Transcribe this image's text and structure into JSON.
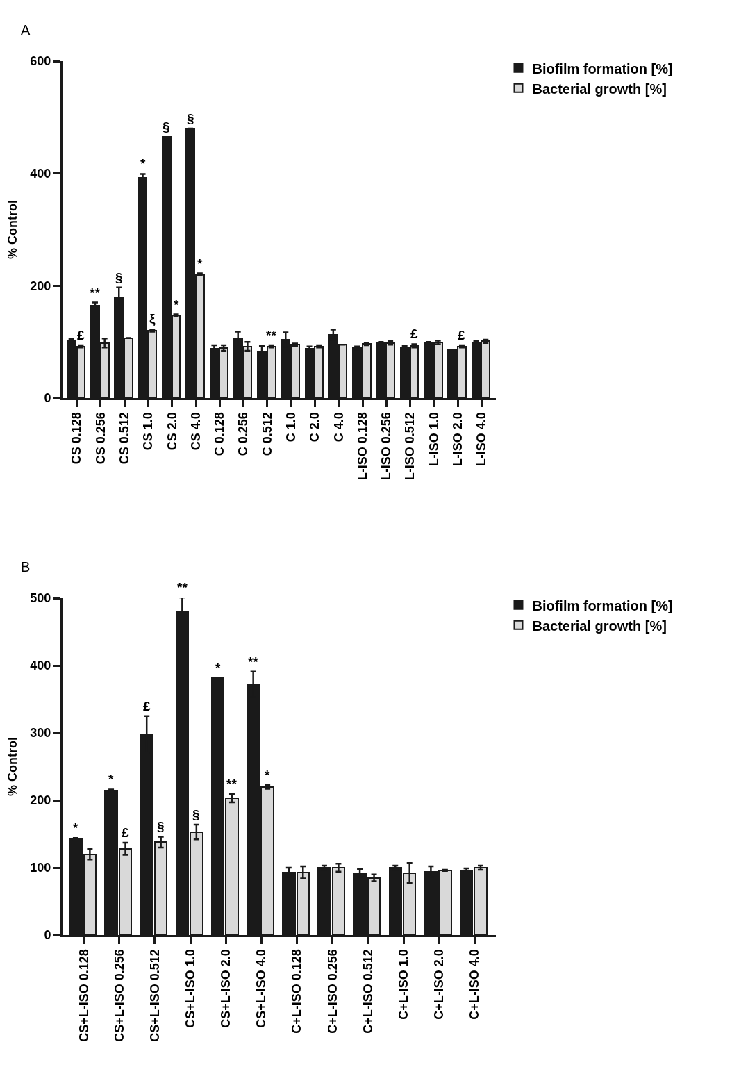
{
  "chart_data": [
    {
      "type": "bar",
      "title": "A",
      "ylabel": "% Control",
      "legend": "top right",
      "grid": false,
      "categories": [
        "CS 0.128",
        "CS 0.256",
        "CS 0.512",
        "CS 1.0",
        "CS 2.0",
        "CS 4.0",
        "C 0.128",
        "C 0.256",
        "C 0.512",
        "C 1.0",
        "C 2.0",
        "C 4.0",
        "L-ISO 0.128",
        "L-ISO 0.256",
        "L-ISO 0.512",
        "L-ISO 1.0",
        "L-ISO 2.0",
        "L-ISO 4.0"
      ],
      "series": [
        {
          "name": "Biofilm formation [%]",
          "color": "#1a1a1a",
          "values": [
            103,
            165,
            180,
            392,
            465,
            480,
            88,
            105,
            83,
            104,
            88,
            113,
            89,
            98,
            90,
            98,
            85,
            98
          ],
          "errors": [
            2,
            5,
            17,
            7,
            null,
            null,
            6,
            13,
            10,
            13,
            4,
            9,
            3,
            2,
            3,
            2,
            null,
            3
          ]
        },
        {
          "name": "Bacterial growth [%]",
          "color": "#d9d9d9",
          "values": [
            92,
            98,
            107,
            120,
            147,
            220,
            89,
            92,
            92,
            95,
            92,
            95,
            96,
            98,
            93,
            99,
            92,
            101
          ],
          "errors": [
            2,
            8,
            null,
            2,
            2,
            2,
            5,
            8,
            2,
            2,
            2,
            null,
            2,
            3,
            3,
            3,
            2,
            3
          ]
        }
      ],
      "ylim": [
        0,
        600
      ],
      "yticks": [
        0,
        200,
        400,
        600
      ],
      "annotations": [
        {
          "text": "£",
          "x": "CS 0.128",
          "y": 92
        },
        {
          "text": "**",
          "x": "CS 0.256",
          "y": 165
        },
        {
          "text": "§",
          "x": "CS 0.512",
          "y": 180
        },
        {
          "text": "*",
          "x": "CS 1.0",
          "y": 392
        },
        {
          "text": "ξ",
          "x": "CS 1.0",
          "y": 120
        },
        {
          "text": "§",
          "x": "CS 2.0",
          "y": 465
        },
        {
          "text": "*",
          "x": "CS 2.0",
          "y": 147
        },
        {
          "text": "§",
          "x": "CS 4.0",
          "y": 480
        },
        {
          "text": "*",
          "x": "CS 4.0",
          "y": 220
        },
        {
          "text": "**",
          "x": "C 0.512",
          "y": 92
        },
        {
          "text": "£",
          "x": "L-ISO 0.512",
          "y": 93
        },
        {
          "text": "£",
          "x": "L-ISO 2.0",
          "y": 92
        }
      ]
    },
    {
      "type": "bar",
      "title": "B",
      "ylabel": "% Control",
      "legend": "top right",
      "grid": false,
      "categories": [
        "CS+L-ISO 0.128",
        "CS+L-ISO 0.256",
        "CS+L-ISO 0.512",
        "CS+L-ISO 1.0",
        "CS+L-ISO 2.0",
        "CS+L-ISO 4.0",
        "C+L-ISO 0.128",
        "C+L-ISO 0.256",
        "C+L-ISO 0.512",
        "C+L-ISO 1.0",
        "C+L-ISO 2.0",
        "C+L-ISO 4.0"
      ],
      "series": [
        {
          "name": "Biofilm formation [%]",
          "color": "#1a1a1a",
          "values": [
            143,
            214,
            298,
            479,
            381,
            372,
            93,
            100,
            92,
            100,
            94,
            96
          ],
          "errors": [
            1,
            2,
            27,
            22,
            null,
            19,
            7,
            3,
            6,
            3,
            8,
            3
          ]
        },
        {
          "name": "Bacterial growth [%]",
          "color": "#d9d9d9",
          "values": [
            120,
            128,
            138,
            153,
            203,
            220,
            93,
            100,
            85,
            92,
            96,
            100
          ],
          "errors": [
            8,
            9,
            8,
            11,
            6,
            3,
            9,
            6,
            5,
            15,
            1,
            3
          ]
        }
      ],
      "ylim": [
        0,
        500
      ],
      "yticks": [
        0,
        100,
        200,
        300,
        400,
        500
      ],
      "annotations": [
        {
          "text": "*",
          "x": "CS+L-ISO 0.128",
          "y": 143
        },
        {
          "text": "*",
          "x": "CS+L-ISO 0.256",
          "y": 214
        },
        {
          "text": "£",
          "x": "CS+L-ISO 0.256",
          "y": 128
        },
        {
          "text": "£",
          "x": "CS+L-ISO 0.512",
          "y": 298
        },
        {
          "text": "§",
          "x": "CS+L-ISO 0.512",
          "y": 138
        },
        {
          "text": "**",
          "x": "CS+L-ISO 1.0",
          "y": 479
        },
        {
          "text": "§",
          "x": "CS+L-ISO 1.0",
          "y": 153
        },
        {
          "text": "*",
          "x": "CS+L-ISO 2.0",
          "y": 381
        },
        {
          "text": "**",
          "x": "CS+L-ISO 2.0",
          "y": 203
        },
        {
          "text": "**",
          "x": "CS+L-ISO 4.0",
          "y": 372
        },
        {
          "text": "*",
          "x": "CS+L-ISO 4.0",
          "y": 220
        }
      ]
    }
  ]
}
